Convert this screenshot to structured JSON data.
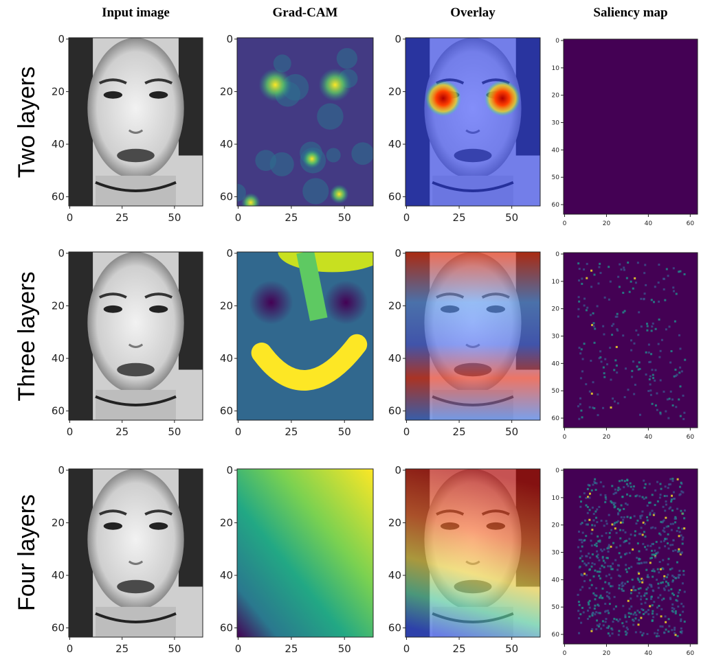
{
  "columns": [
    {
      "title": "Input image",
      "xlim": [
        -0.5,
        63.5
      ],
      "ylim": [
        -0.5,
        63.5
      ],
      "xticks": [
        0,
        25,
        50
      ],
      "yticks": [
        0,
        20,
        40,
        60
      ]
    },
    {
      "title": "Grad-CAM",
      "xlim": [
        -0.5,
        63.5
      ],
      "ylim": [
        -0.5,
        63.5
      ],
      "xticks": [
        0,
        25,
        50
      ],
      "yticks": [
        0,
        20,
        40,
        60
      ]
    },
    {
      "title": "Overlay",
      "xlim": [
        -0.5,
        63.5
      ],
      "ylim": [
        -0.5,
        63.5
      ],
      "xticks": [
        0,
        25,
        50
      ],
      "yticks": [
        0,
        20,
        40,
        60
      ]
    },
    {
      "title": "Saliency map",
      "xlim": [
        -0.5,
        63.5
      ],
      "ylim": [
        -0.5,
        63.5
      ],
      "xticks": [
        0,
        20,
        40,
        60
      ],
      "yticks": [
        0,
        10,
        20,
        30,
        40,
        50,
        60
      ]
    }
  ],
  "rows": [
    {
      "label": "Two layers"
    },
    {
      "label": "Three layers"
    },
    {
      "label": "Four layers"
    }
  ]
}
